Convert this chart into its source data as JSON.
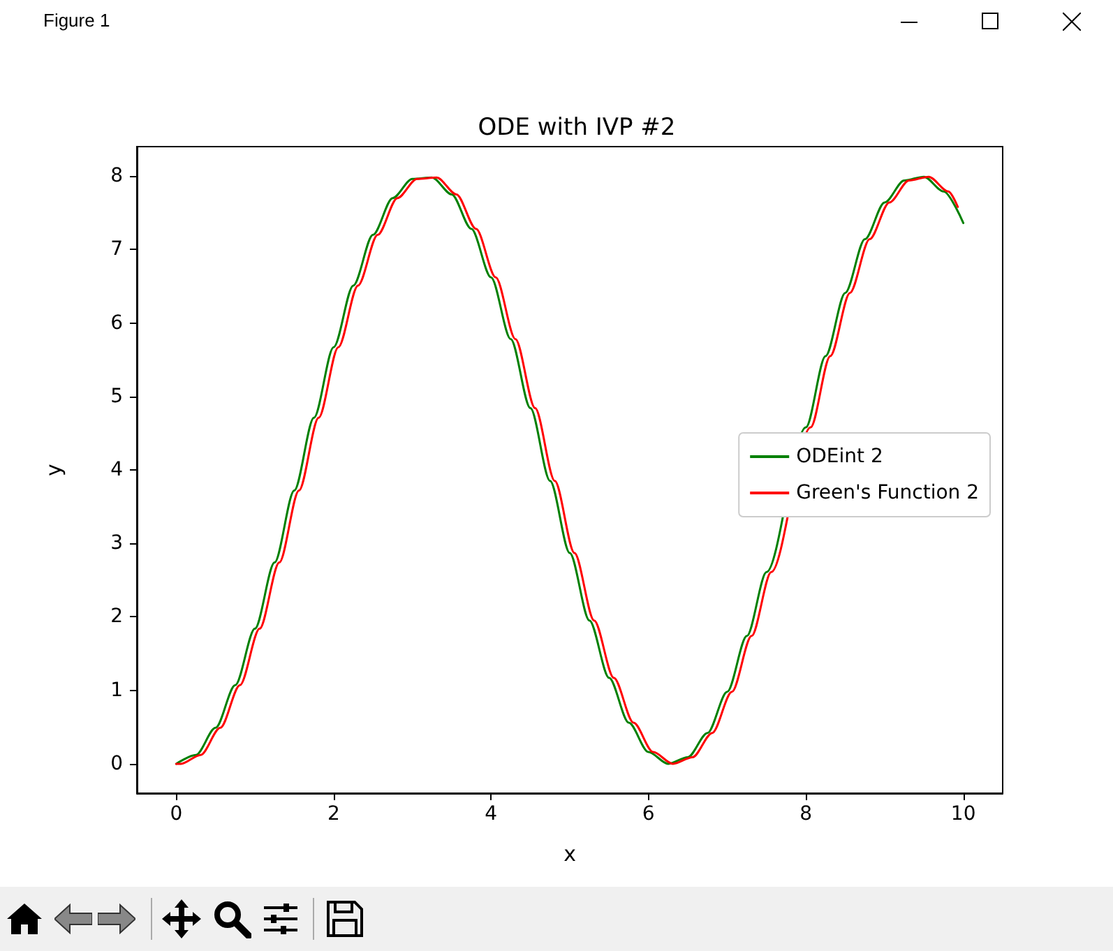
{
  "chart_data": {
    "type": "line",
    "title": "ODE with IVP #2",
    "xlabel": "x",
    "ylabel": "y",
    "annotations": [
      "Figure 1"
    ],
    "xlim": [
      -0.5,
      10.5
    ],
    "xticks": [
      0,
      2,
      4,
      6,
      8,
      10
    ],
    "ylim": [
      -0.4,
      8.4
    ],
    "yticks": [
      0,
      1,
      2,
      3,
      4,
      5,
      6,
      7,
      8
    ],
    "grid": false,
    "legend": "right",
    "marker": "none",
    "line_style": "solid",
    "series": [
      {
        "name": "ODEint 2",
        "color": "#008000",
        "x": [
          0,
          0.25,
          0.5,
          0.75,
          1,
          1.25,
          1.5,
          1.75,
          2,
          2.25,
          2.5,
          2.75,
          3,
          3.25,
          3.5,
          3.75,
          4,
          4.25,
          4.5,
          4.75,
          5,
          5.25,
          5.5,
          5.75,
          6,
          6.25,
          6.5,
          6.75,
          7,
          7.25,
          7.5,
          7.75,
          8,
          8.25,
          8.5,
          8.75,
          9,
          9.25,
          9.5,
          9.75,
          10
        ],
        "values": [
          0,
          0.12,
          0.49,
          1.07,
          1.84,
          2.74,
          3.72,
          4.71,
          5.67,
          6.51,
          7.2,
          7.7,
          7.96,
          7.98,
          7.75,
          7.28,
          6.62,
          5.78,
          4.84,
          3.85,
          2.87,
          1.95,
          1.17,
          0.56,
          0.16,
          0,
          0.09,
          0.42,
          0.98,
          1.74,
          2.61,
          null,
          4.58,
          5.55,
          6.41,
          7.14,
          7.64,
          7.94,
          7.99,
          7.79,
          7.36
        ]
      },
      {
        "name": "Green's Function 2",
        "color": "#ff0000",
        "x": [
          0,
          0.06,
          0.31,
          0.56,
          0.81,
          1.06,
          1.31,
          1.56,
          1.81,
          2.06,
          2.31,
          2.56,
          2.81,
          3.06,
          3.31,
          3.56,
          3.81,
          4.06,
          4.31,
          4.56,
          4.81,
          5.06,
          5.31,
          5.56,
          5.81,
          6.06,
          6.31,
          6.56,
          6.81,
          7.06,
          7.31,
          7.56,
          7.81,
          8.06,
          8.31,
          8.56,
          8.81,
          9.06,
          9.31,
          9.56,
          9.81,
          9.93
        ],
        "values": [
          0,
          0,
          0.12,
          0.49,
          1.07,
          1.84,
          2.74,
          3.72,
          4.71,
          5.67,
          6.51,
          7.2,
          7.7,
          7.96,
          7.98,
          7.75,
          7.28,
          6.62,
          5.78,
          4.84,
          3.85,
          2.87,
          1.95,
          1.17,
          0.56,
          0.16,
          0,
          0.09,
          0.42,
          0.98,
          1.74,
          2.61,
          null,
          4.58,
          5.55,
          6.41,
          7.14,
          7.64,
          7.94,
          7.99,
          7.79,
          7.58
        ]
      }
    ]
  }
}
